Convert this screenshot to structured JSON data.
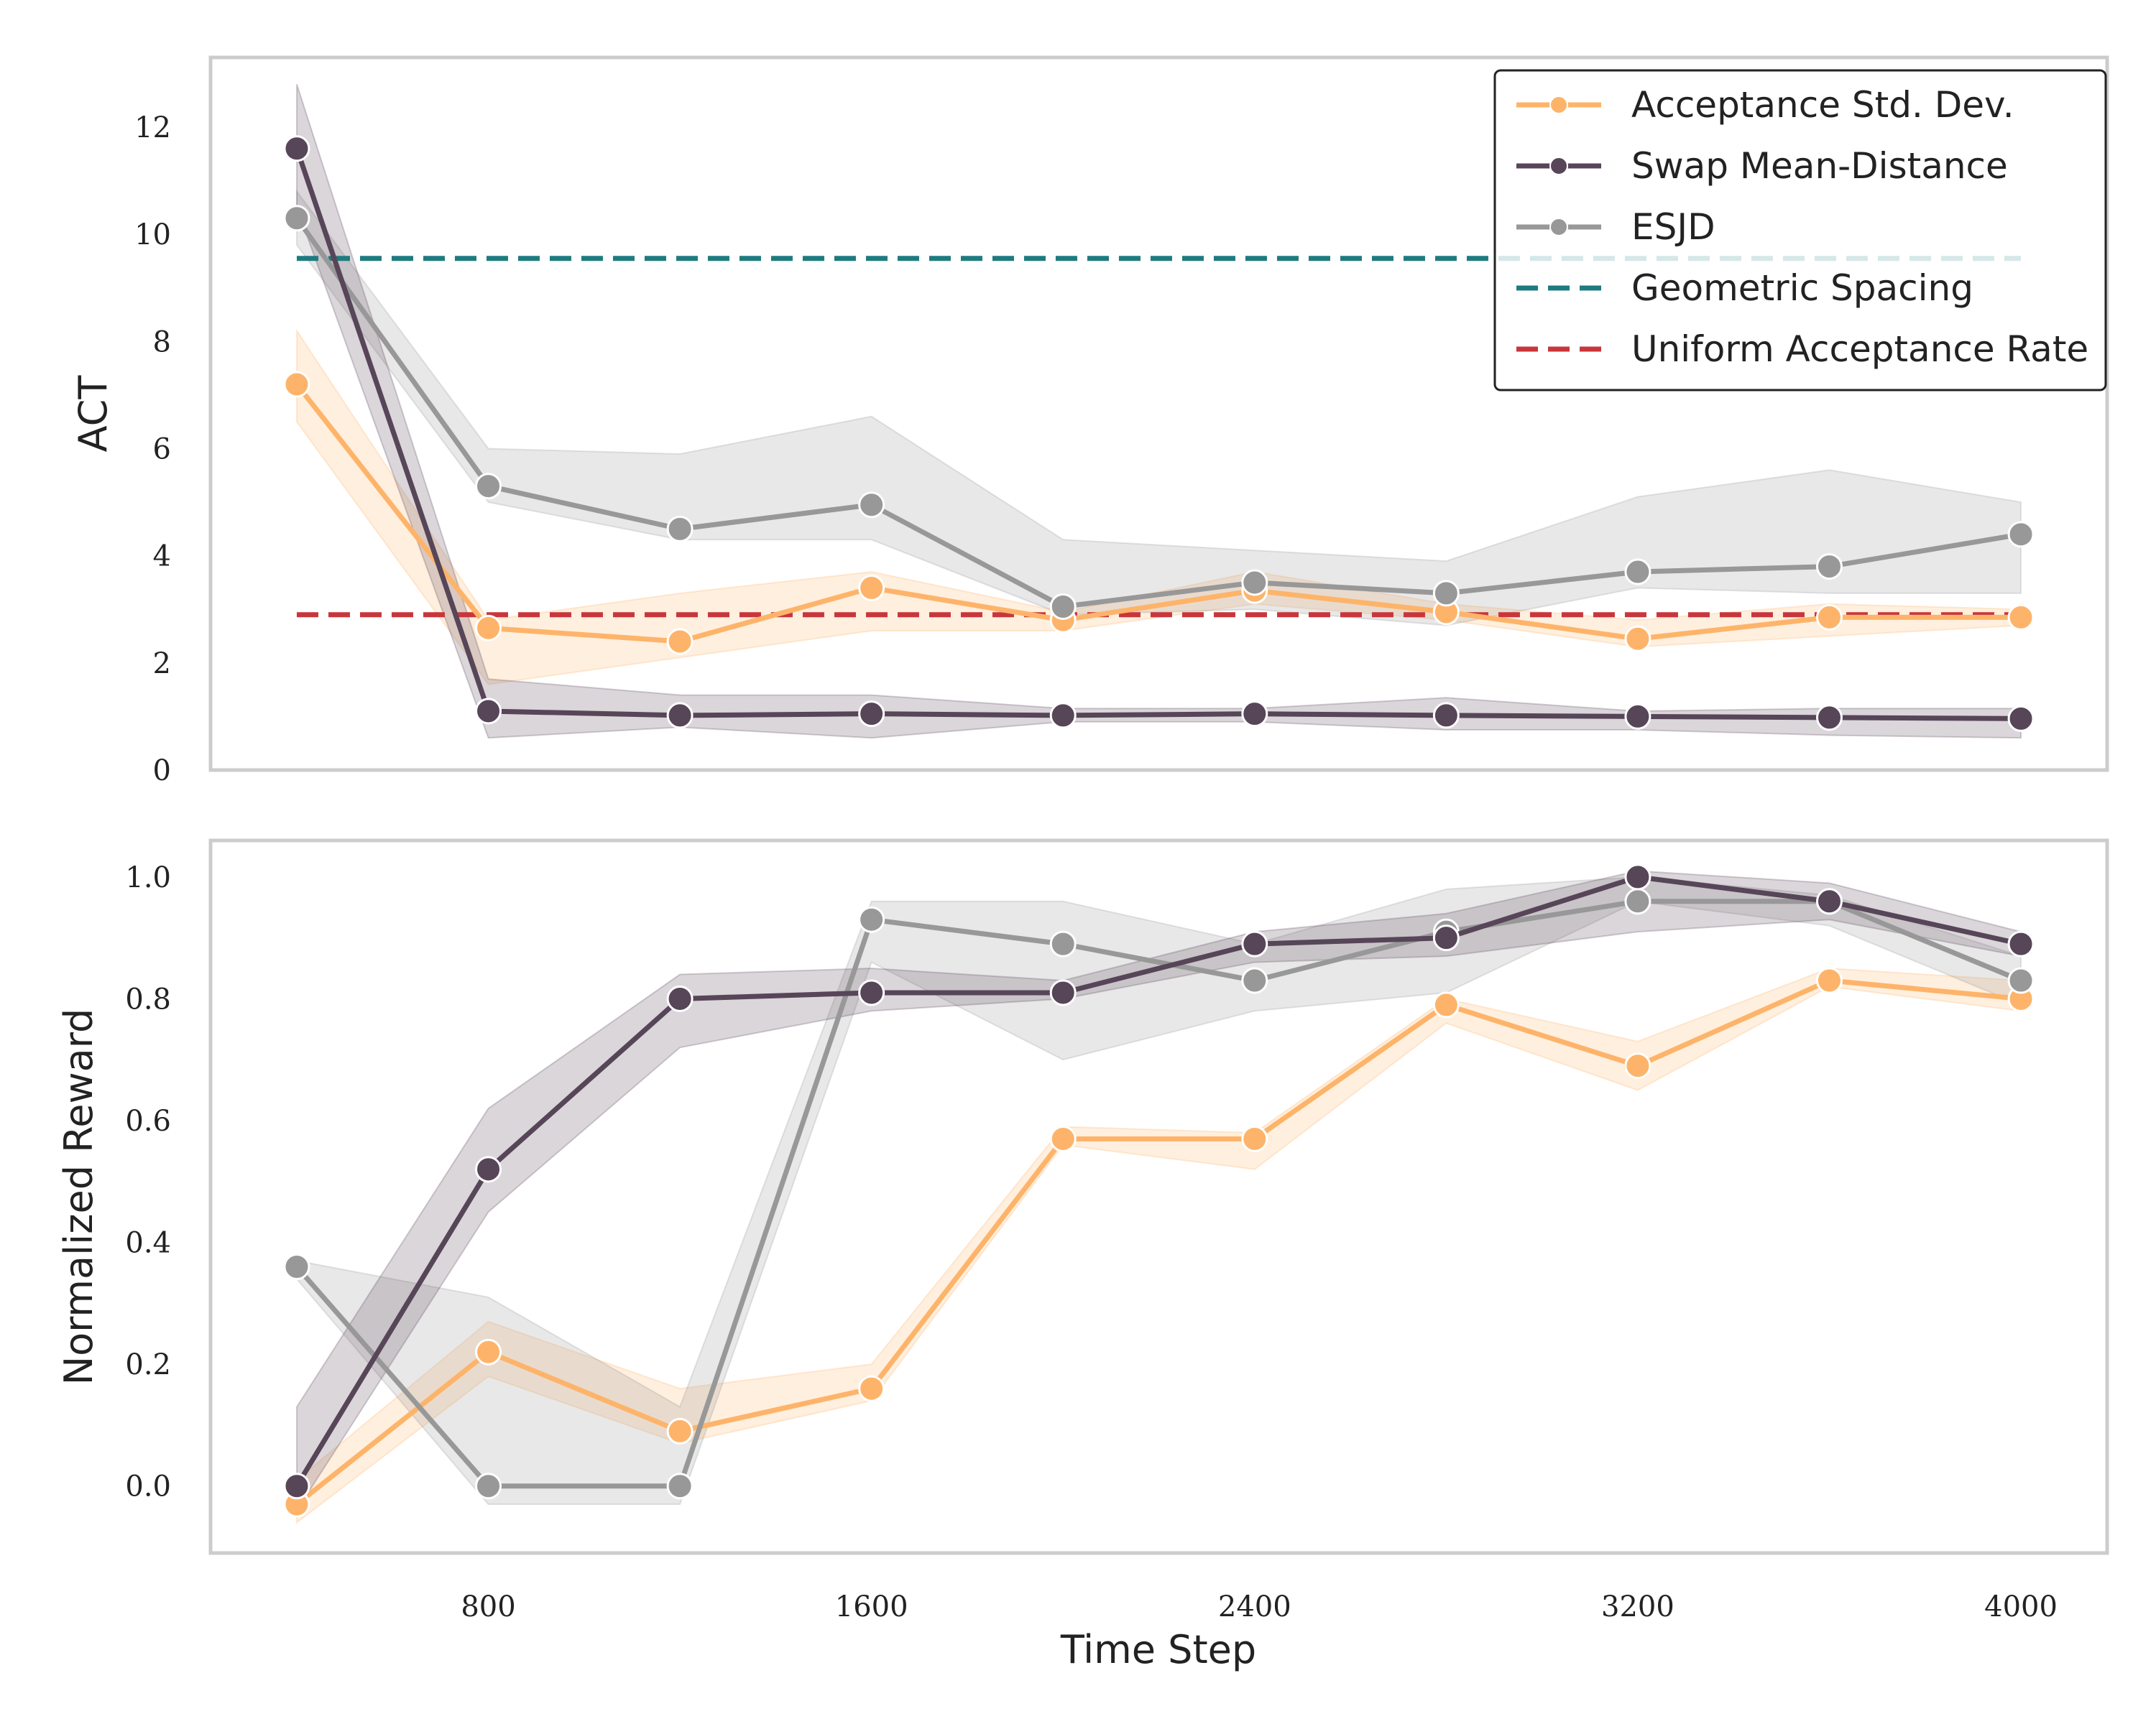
{
  "figure": {
    "x_label": "Time Step",
    "x_ticks": [
      "800",
      "1600",
      "2400",
      "3200",
      "4000"
    ],
    "colors": {
      "acceptance_std": "#FDB46A",
      "swap_mean_distance": "#574558",
      "esjd": "#989898",
      "geometric": "#1E7B80",
      "uniform": "#C8363B",
      "frame": "#CCCCCC"
    }
  },
  "legend": [
    {
      "label": "Acceptance Std. Dev.",
      "color": "#FDB46A",
      "style": "solid-marker"
    },
    {
      "label": "Swap Mean-Distance",
      "color": "#574558",
      "style": "solid-marker"
    },
    {
      "label": "ESJD",
      "color": "#989898",
      "style": "solid-marker"
    },
    {
      "label": "Geometric Spacing",
      "color": "#1E7B80",
      "style": "dashed"
    },
    {
      "label": "Uniform Acceptance Rate",
      "color": "#C8363B",
      "style": "dashed"
    }
  ],
  "chart_data": [
    {
      "type": "line",
      "panel": "top",
      "title": "",
      "xlabel": "",
      "ylabel": "ACT",
      "x": [
        400,
        800,
        1200,
        1600,
        2000,
        2400,
        2800,
        3200,
        3600,
        4000
      ],
      "xlim": [
        220,
        4180
      ],
      "ylim": [
        0,
        13.3
      ],
      "y_ticks": [
        0,
        2,
        4,
        6,
        8,
        10,
        12
      ],
      "y_tick_labels": [
        "0",
        "2",
        "4",
        "6",
        "8",
        "10",
        "12"
      ],
      "legend_position": "top-right",
      "grid": false,
      "series": [
        {
          "name": "Acceptance Std. Dev.",
          "color": "#FDB46A",
          "values": [
            7.2,
            2.65,
            2.4,
            3.4,
            2.8,
            3.35,
            2.95,
            2.45,
            2.85,
            2.85
          ],
          "lower": [
            6.5,
            1.6,
            2.1,
            2.6,
            2.6,
            3.1,
            2.8,
            2.3,
            2.5,
            2.7
          ],
          "upper": [
            8.2,
            2.8,
            3.3,
            3.7,
            2.95,
            3.7,
            3.1,
            2.8,
            3.1,
            3.0
          ]
        },
        {
          "name": "ESJD",
          "color": "#989898",
          "values": [
            10.3,
            5.3,
            4.5,
            4.95,
            3.05,
            3.5,
            3.3,
            3.7,
            3.8,
            4.4
          ],
          "lower": [
            9.8,
            5.0,
            4.3,
            4.3,
            2.9,
            3.0,
            2.7,
            3.4,
            3.3,
            3.3
          ],
          "upper": [
            10.8,
            6.0,
            5.9,
            6.6,
            4.3,
            4.1,
            3.9,
            5.1,
            5.6,
            5.0
          ]
        },
        {
          "name": "Swap Mean-Distance",
          "color": "#574558",
          "values": [
            11.6,
            1.1,
            1.02,
            1.05,
            1.02,
            1.05,
            1.02,
            1.0,
            0.98,
            0.96
          ],
          "lower": [
            10.5,
            0.6,
            0.8,
            0.6,
            0.9,
            0.9,
            0.75,
            0.75,
            0.65,
            0.6
          ],
          "upper": [
            12.8,
            1.7,
            1.4,
            1.4,
            1.15,
            1.15,
            1.35,
            1.1,
            1.15,
            1.15
          ]
        }
      ],
      "reference_lines": [
        {
          "name": "Geometric Spacing",
          "color": "#1E7B80",
          "value": 9.55,
          "x_range": [
            400,
            4000
          ]
        },
        {
          "name": "Uniform Acceptance Rate",
          "color": "#C8363B",
          "value": 2.9,
          "x_range": [
            400,
            4000
          ]
        }
      ]
    },
    {
      "type": "line",
      "panel": "bottom",
      "title": "",
      "xlabel": "Time Step",
      "ylabel": "Normalized Reward",
      "x": [
        400,
        800,
        1200,
        1600,
        2000,
        2400,
        2800,
        3200,
        3600,
        4000
      ],
      "xlim": [
        220,
        4180
      ],
      "ylim": [
        -0.11,
        1.06
      ],
      "y_ticks": [
        0.0,
        0.2,
        0.4,
        0.6,
        0.8,
        1.0
      ],
      "y_tick_labels": [
        "0.0",
        "0.2",
        "0.4",
        "0.6",
        "0.8",
        "1.0"
      ],
      "x_ticks": [
        800,
        1600,
        2400,
        3200,
        4000
      ],
      "grid": false,
      "series": [
        {
          "name": "Acceptance Std. Dev.",
          "color": "#FDB46A",
          "values": [
            -0.03,
            0.22,
            0.09,
            0.16,
            0.57,
            0.57,
            0.79,
            0.69,
            0.83,
            0.8
          ],
          "lower": [
            -0.06,
            0.18,
            0.07,
            0.14,
            0.56,
            0.52,
            0.76,
            0.65,
            0.82,
            0.78
          ],
          "upper": [
            0.01,
            0.27,
            0.16,
            0.2,
            0.59,
            0.58,
            0.8,
            0.73,
            0.85,
            0.83
          ]
        },
        {
          "name": "ESJD",
          "color": "#989898",
          "values": [
            0.36,
            0.0,
            0.0,
            0.93,
            0.89,
            0.83,
            0.91,
            0.96,
            0.96,
            0.83
          ],
          "lower": [
            0.34,
            -0.03,
            -0.03,
            0.86,
            0.7,
            0.78,
            0.81,
            0.96,
            0.92,
            0.79
          ],
          "upper": [
            0.37,
            0.31,
            0.13,
            0.96,
            0.96,
            0.89,
            0.98,
            1.0,
            0.97,
            0.87
          ]
        },
        {
          "name": "Swap Mean-Distance",
          "color": "#574558",
          "values": [
            0.0,
            0.52,
            0.8,
            0.81,
            0.81,
            0.89,
            0.9,
            1.0,
            0.96,
            0.89
          ],
          "lower": [
            -0.04,
            0.45,
            0.72,
            0.78,
            0.8,
            0.86,
            0.87,
            0.91,
            0.93,
            0.87
          ],
          "upper": [
            0.13,
            0.62,
            0.84,
            0.85,
            0.83,
            0.91,
            0.94,
            1.01,
            0.99,
            0.91
          ]
        }
      ]
    }
  ]
}
